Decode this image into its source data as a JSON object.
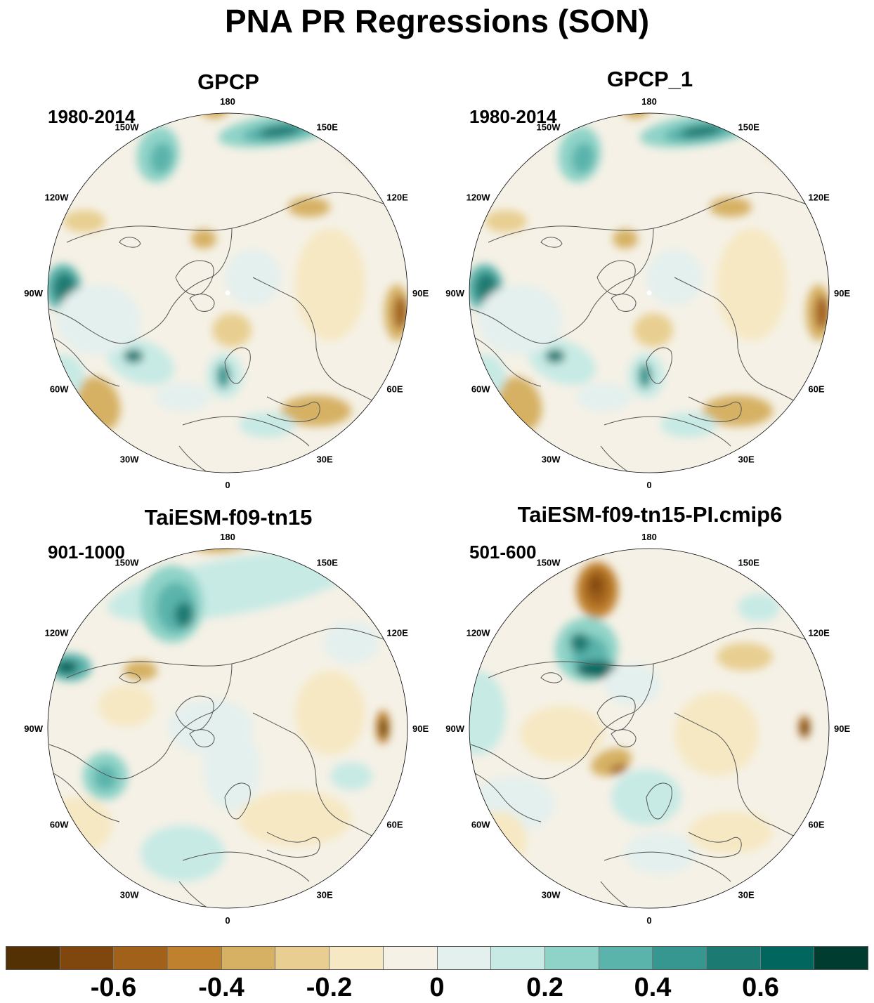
{
  "title": "PNA PR Regressions (SON)",
  "panels": [
    {
      "title": "GPCP",
      "period": "1980-2014"
    },
    {
      "title": "GPCP_1",
      "period": "1980-2014"
    },
    {
      "title": "TaiESM-f09-tn15",
      "period": "901-1000"
    },
    {
      "title": "TaiESM-f09-tn15-PI.cmip6",
      "period": "501-600"
    }
  ],
  "longitude_labels": [
    "180",
    "150E",
    "120E",
    "90E",
    "60E",
    "30E",
    "0",
    "30W",
    "60W",
    "90W",
    "120W",
    "150W"
  ],
  "colorbar": {
    "colors": [
      "#543005",
      "#7f470d",
      "#a1611a",
      "#bf812d",
      "#d6b164",
      "#e8cf91",
      "#f6e8c3",
      "#f5f1e6",
      "#e4f0ee",
      "#c7eae5",
      "#8fd3c8",
      "#5ab4ac",
      "#35978f",
      "#1b7a72",
      "#01665e",
      "#003c30"
    ],
    "tick_labels": [
      "-0.6",
      "-0.4",
      "-0.2",
      "0",
      "0.2",
      "0.4",
      "0.6"
    ],
    "ticks": [
      -0.6,
      -0.4,
      -0.2,
      0,
      0.2,
      0.4,
      0.6
    ]
  }
}
